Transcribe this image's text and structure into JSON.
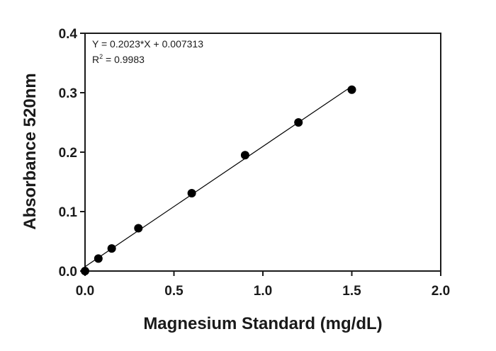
{
  "chart_data": {
    "type": "scatter",
    "title": "",
    "xlabel": "Magnesium Standard (mg/dL)",
    "ylabel": "Absorbance 520nm",
    "xlim": [
      0,
      2
    ],
    "ylim": [
      0,
      0.4
    ],
    "x_ticks": [
      "0.0",
      "0.5",
      "1.0",
      "1.5",
      "2.0"
    ],
    "y_ticks": [
      "0.0",
      "0.1",
      "0.2",
      "0.3",
      "0.4"
    ],
    "grid": false,
    "legend": "none",
    "points": [
      {
        "x": 0,
        "y": 0.0
      },
      {
        "x": 0.075,
        "y": 0.021
      },
      {
        "x": 0.15,
        "y": 0.038
      },
      {
        "x": 0.3,
        "y": 0.072
      },
      {
        "x": 0.6,
        "y": 0.131
      },
      {
        "x": 0.9,
        "y": 0.195
      },
      {
        "x": 1.2,
        "y": 0.25
      },
      {
        "x": 1.5,
        "y": 0.305
      }
    ],
    "fit": {
      "slope": 0.2023,
      "intercept": 0.007313,
      "x_range": [
        0,
        1.5
      ],
      "equation": "Y = 0.2023*X + 0.007313",
      "r2_label": "R",
      "r2_exp": "2",
      "r2_value": " = 0.9983"
    },
    "colors": {
      "points": "#000000",
      "axes": "#1a1a1a",
      "line": "#000000"
    }
  }
}
